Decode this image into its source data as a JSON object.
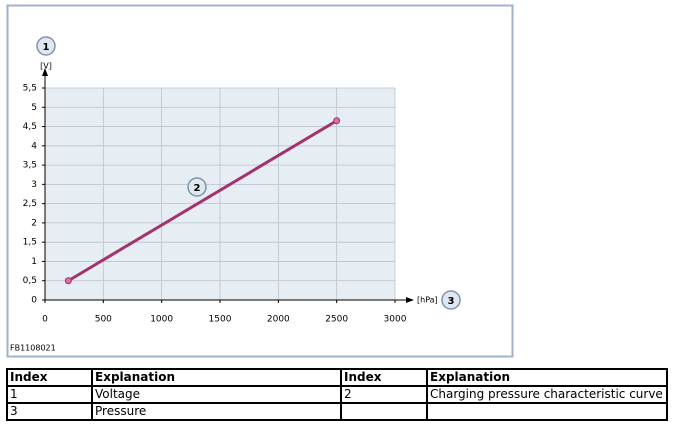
{
  "chart_data": {
    "type": "line",
    "ylabel": "[V]",
    "xlabel": "[hPa]",
    "x": [
      200,
      2500
    ],
    "series": [
      {
        "name": "Charging pressure characteristic curve",
        "color": "#a3336d",
        "values": [
          0.5,
          4.65
        ]
      }
    ],
    "xlim": [
      0,
      3000
    ],
    "xticks": [
      0,
      500,
      1000,
      1500,
      2000,
      2500,
      3000
    ],
    "ylim": [
      0,
      5.5
    ],
    "yticks": [
      0,
      {
        "value": 0.5,
        "label": "0,5"
      },
      1,
      {
        "value": 1.5,
        "label": "1,5"
      },
      2,
      {
        "value": 2.5,
        "label": "2,5"
      },
      3,
      {
        "value": 3.5,
        "label": "3,5"
      },
      4,
      {
        "value": 4.5,
        "label": "4,5"
      },
      5,
      {
        "value": 5.5,
        "label": "5,5"
      }
    ],
    "grid": true,
    "callouts": [
      "1",
      "2",
      "3"
    ]
  },
  "figure_id": "FB1108021",
  "table": {
    "header": [
      "Index",
      "Explanation",
      "Index",
      "Explanation"
    ],
    "rows": [
      [
        "1",
        "Voltage",
        "2",
        "Charging pressure characteristic curve"
      ],
      [
        "3",
        "Pressure",
        null,
        null
      ]
    ]
  }
}
